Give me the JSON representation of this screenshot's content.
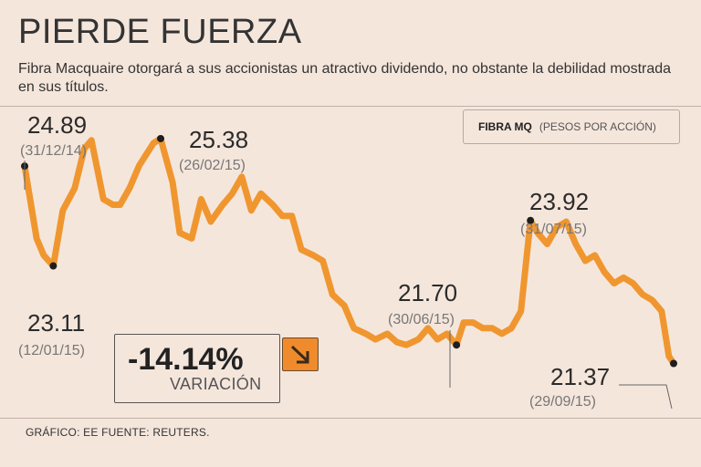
{
  "header": {
    "title": "PIERDE FUERZA",
    "subtitle": "Fibra Macquaire otorgará a sus accionistas un atractivo dividendo, no obstante la debilidad mostrada en sus títulos."
  },
  "legend": {
    "name": "FIBRA MQ",
    "unit": "(PESOS POR ACCIÓN)"
  },
  "variation": {
    "value": "-14.14%",
    "label": "VARIACIÓN",
    "icon": "arrow-down-right-icon"
  },
  "footer": "GRÁFICO: EE  FUENTE: REUTERS.",
  "colors": {
    "line": "#f0962f",
    "background": "#f5e6dc",
    "marker": "#1e1e1e"
  },
  "chart_data": {
    "type": "line",
    "x_range": [
      "2014-12-31",
      "2015-09-29"
    ],
    "ylim": [
      20.5,
      25.9
    ],
    "grid": false,
    "series": [
      {
        "name": "FIBRA MQ",
        "x": [
          "2014-12-31",
          "2015-01-05",
          "2015-01-08",
          "2015-01-12",
          "2015-01-16",
          "2015-01-21",
          "2015-01-25",
          "2015-01-28",
          "2015-02-02",
          "2015-02-06",
          "2015-02-09",
          "2015-02-13",
          "2015-02-17",
          "2015-02-20",
          "2015-02-23",
          "2015-02-26",
          "2015-03-03",
          "2015-03-06",
          "2015-03-11",
          "2015-03-15",
          "2015-03-19",
          "2015-03-24",
          "2015-03-28",
          "2015-04-01",
          "2015-04-05",
          "2015-04-09",
          "2015-04-14",
          "2015-04-18",
          "2015-04-22",
          "2015-04-26",
          "2015-05-01",
          "2015-05-05",
          "2015-05-09",
          "2015-05-14",
          "2015-05-18",
          "2015-05-23",
          "2015-05-27",
          "2015-06-01",
          "2015-06-05",
          "2015-06-09",
          "2015-06-14",
          "2015-06-18",
          "2015-06-22",
          "2015-06-26",
          "2015-06-30",
          "2015-07-03",
          "2015-07-07",
          "2015-07-11",
          "2015-07-15",
          "2015-07-19",
          "2015-07-23",
          "2015-07-27",
          "2015-07-31",
          "2015-08-03",
          "2015-08-07",
          "2015-08-11",
          "2015-08-15",
          "2015-08-19",
          "2015-08-23",
          "2015-08-27",
          "2015-08-31",
          "2015-09-04",
          "2015-09-08",
          "2015-09-12",
          "2015-09-16",
          "2015-09-20",
          "2015-09-24",
          "2015-09-27",
          "2015-09-29"
        ],
        "values": [
          24.89,
          23.6,
          23.3,
          23.11,
          24.1,
          24.5,
          25.2,
          25.35,
          24.3,
          24.2,
          24.2,
          24.5,
          24.9,
          25.1,
          25.3,
          25.38,
          24.6,
          23.7,
          23.6,
          24.3,
          23.9,
          24.2,
          24.4,
          24.7,
          24.1,
          24.4,
          24.2,
          24.0,
          24.0,
          23.4,
          23.3,
          23.2,
          22.6,
          22.4,
          22.0,
          21.9,
          21.8,
          21.9,
          21.75,
          21.7,
          21.8,
          22.0,
          21.8,
          21.9,
          21.7,
          22.1,
          22.1,
          22.0,
          22.0,
          21.9,
          22.0,
          22.3,
          23.92,
          23.7,
          23.5,
          23.8,
          23.9,
          23.5,
          23.2,
          23.3,
          23.0,
          22.8,
          22.9,
          22.8,
          22.6,
          22.5,
          22.3,
          21.5,
          21.37
        ]
      }
    ],
    "annotations": [
      {
        "value": "24.89",
        "date": "(31/12/14)",
        "index": 0
      },
      {
        "value": "23.11",
        "date": "(12/01/15)",
        "index": 3
      },
      {
        "value": "25.38",
        "date": "(26/02/15)",
        "index": 15
      },
      {
        "value": "21.70",
        "date": "(30/06/15)",
        "index": 44
      },
      {
        "value": "23.92",
        "date": "(31/07/15)",
        "index": 52
      },
      {
        "value": "21.37",
        "date": "(29/09/15)",
        "index": 68
      }
    ]
  }
}
